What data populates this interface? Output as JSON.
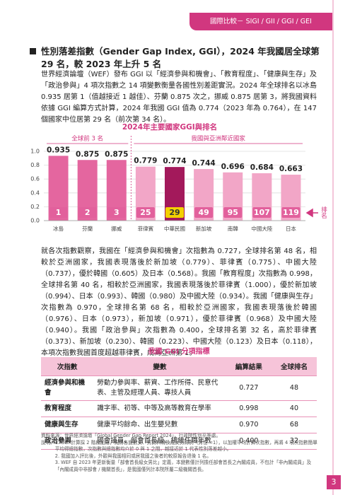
{
  "header": {
    "tab": "國際比較－ SIGI / GII / GGI / GEI"
  },
  "section": {
    "heading": "性別落差指數（Gender Gap Index, GGI），2024 年我國居全球第 29 名，較 2023 年上升 5 名",
    "paragraph_1": "世界經濟論壇（WEF）發布 GGI 以「經濟參與和機會」、「教育程度」、「健康與生存」及「政治參與」4 項次指數之 14 項變數衡量各國性別差距實況。2024 年全球排名以冰島 0.935 居第 1（值越接近 1 越佳）、芬蘭 0.875 次之，挪威 0.875 居第 3，將我國資料依據 GGI 編算方式計算，2024 年我國 GGI 值為 0.774（2023 年為 0.764），在 147 個國家中位居第 29 名（前次第 34 名）。",
    "paragraph_2": "就各次指數觀察，我國在「經濟參與和機會」次指數為 0.727，全球排名第 48 名，相較於亞洲國家，我國表現落後於新加坡（0.779）、菲律賓（0.775）、中國大陸（0.737），優於韓國（0.605）及日本（0.568）。我國「教育程度」次指數為 0.998，全球排名第 40 名，相較於亞洲國家，我國表現落後於菲律賓（1.000），優於新加坡（0.994）、日本（0.993）、韓國（0.980）及中國大陸（0.934）。我國「健康與生存」次指數為 0.970，全球排名第 68 名，相較於亞洲國家，我國表現落後於韓國（0.976）、日本（0.973），新加坡（0.971），優於菲律賓（0.968）及中國大陸（0.940）。我國「政治參與」次指數為 0.400，全球排名第 32 名，高於菲律賓（0.373）、新加坡（0.230）、韓國（0.223）、中國大陸（0.123）及日本（0.118），本項次指數我國首度超越菲律賓，成為亞洲第 1。"
  },
  "chart_data": {
    "type": "bar",
    "title": "2024年主要國家GGI與排名",
    "group_labels": [
      "全球前 3 名",
      "我國與亞洲鄰近國家"
    ],
    "categories": [
      "冰島",
      "芬蘭",
      "挪威",
      "菲律賓",
      "中華民國",
      "新加坡",
      "南韓",
      "中國大陸",
      "日本"
    ],
    "values": [
      0.935,
      0.875,
      0.875,
      0.779,
      0.774,
      0.744,
      0.696,
      0.684,
      0.663
    ],
    "colors": [
      "#e4669f",
      "#e4669f",
      "#e4669f",
      "#f2a6c7",
      "#a3195b",
      "#f2a6c7",
      "#f2a6c7",
      "#f2a6c7",
      "#f2a6c7"
    ],
    "ranks": [
      1,
      2,
      3,
      25,
      29,
      49,
      95,
      107,
      119
    ],
    "rank_colors": [
      "#e2609c",
      "#e2609c",
      "#e2609c",
      "#e2609c",
      "#f3d000",
      "#e2609c",
      "#e2609c",
      "#e2609c",
      "#e2609c"
    ],
    "rank_label": "排名",
    "ylim": [
      0,
      1
    ],
    "yticks": [
      {
        "value": 0,
        "label": "0.0"
      },
      0.2,
      0.4,
      0.6,
      0.8,
      {
        "value": 1,
        "label": "1.0"
      }
    ],
    "grid": true
  },
  "table": {
    "title": "我國 GGI 分項指標",
    "columns": [
      "次指數",
      "變數",
      "編算結果",
      "全球排名"
    ],
    "rows": [
      [
        "經濟參與和機會",
        "勞動力參與率、薪資、工作所得、民意代表、主管及經理人員、專技人員",
        "0.727",
        "48"
      ],
      [
        "教育程度",
        "識字率、初等、中等及高等教育在學率",
        "0.998",
        "40"
      ],
      [
        "健康與生存",
        "健康平均餘命、出生嬰兒數",
        "0.970",
        "68"
      ],
      [
        "政治參與",
        "國會議員、部會首長級、總統任職年數",
        "0.400",
        "32"
      ]
    ]
  },
  "notes": {
    "source": "資料來源：世界經濟論壇「Global Gender Gap Report 2024」，行政院性別平等處。",
    "label": "說明：",
    "items": [
      "1. GGI 計算採 2 階段加總，先將各變數女、男資料轉換成女男比例（男性 =1），以加權平均計算次指數，再將 4 項次指數簡單平均得總指數，次指數與總指數均介於 0 與 1 之間，越接近於 1 代表性別落差越小。",
      "2. 我國加入評比後，外觀與我國相同或居我國之後者的較原報告退後 1 名。",
      "3. WEF 自 2023 年更新衡量「部會首長級女男比」定義，本變數僅計列擔任部會首長之內閣成員，不包計「非內閣成員」及「內閣成員中非部會 / 機關首長」，是我國僅列計本院所屬二級機關首長。"
    ]
  },
  "page_number": "3"
}
